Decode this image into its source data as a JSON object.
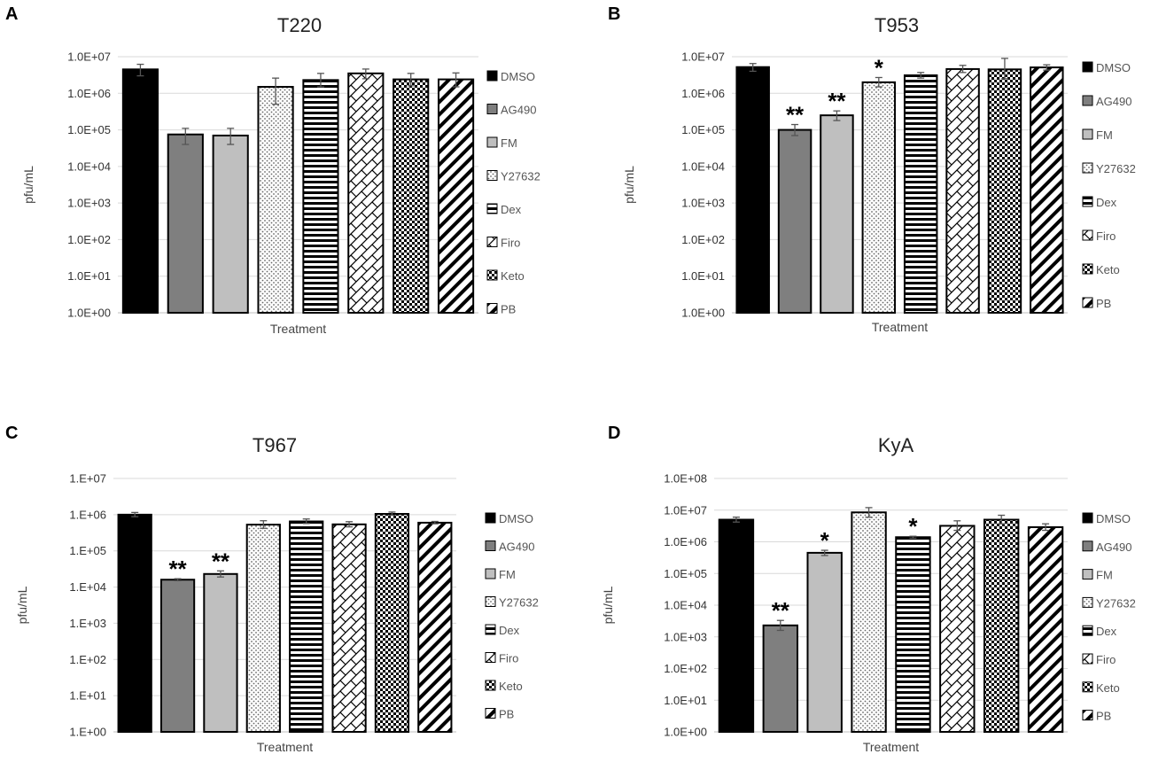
{
  "figure": {
    "colors": {
      "background": "#ffffff",
      "gridline": "#d9d9d9",
      "bar_outline": "#000000",
      "errorbar": "#555555"
    },
    "legend_items": [
      {
        "label": "DMSO",
        "fill": "solid-black"
      },
      {
        "label": "AG490",
        "fill": "solid-dark-gray"
      },
      {
        "label": "FM",
        "fill": "solid-light-gray"
      },
      {
        "label": "Y27632",
        "fill": "dots"
      },
      {
        "label": "Dex",
        "fill": "horizontal-stripes"
      },
      {
        "label": "Firo",
        "fill": "diagonal-weave"
      },
      {
        "label": "Keto",
        "fill": "checkerboard"
      },
      {
        "label": "PB",
        "fill": "wide-diagonal-stripes"
      }
    ]
  },
  "chart_data": [
    {
      "panel": "A",
      "type": "bar",
      "title": "T220",
      "scale": "log",
      "ylabel": "pfu/mL",
      "xlabel": "Treatment",
      "ylim": [
        1,
        10000000
      ],
      "ytick_labels": [
        "1.0E+00",
        "1.0E+01",
        "1.0E+02",
        "1.0E+03",
        "1.0E+04",
        "1.0E+05",
        "1.0E+06",
        "1.0E+07"
      ],
      "categories": [
        "DMSO",
        "AG490",
        "FM",
        "Y27632",
        "Dex",
        "Firo",
        "Keto",
        "PB"
      ],
      "values": [
        4500000,
        75000,
        70000,
        1500000,
        2300000,
        3500000,
        2400000,
        2400000
      ],
      "err_low": [
        3000000,
        40000,
        40000,
        500000,
        1500000,
        2500000,
        1600000,
        1500000
      ],
      "err_high": [
        6200000,
        110000,
        110000,
        2600000,
        3500000,
        4600000,
        3500000,
        3600000
      ],
      "significance": [
        "",
        "",
        "",
        "",
        "",
        "",
        "",
        ""
      ],
      "legend_position": "right"
    },
    {
      "panel": "B",
      "type": "bar",
      "title": "T953",
      "scale": "log",
      "ylabel": "pfu/mL",
      "xlabel": "Treatment",
      "ylim": [
        1,
        10000000
      ],
      "ytick_labels": [
        "1.0E+00",
        "1.0E+01",
        "1.0E+02",
        "1.0E+03",
        "1.0E+04",
        "1.0E+05",
        "1.0E+06",
        "1.0E+07"
      ],
      "categories": [
        "DMSO",
        "AG490",
        "FM",
        "Y27632",
        "Dex",
        "Firo",
        "Keto",
        "PB"
      ],
      "values": [
        5200000,
        100000,
        250000,
        2000000,
        3100000,
        4600000,
        4500000,
        5100000
      ],
      "err_low": [
        4000000,
        70000,
        180000,
        1500000,
        2600000,
        3700000,
        2500000,
        4300000
      ],
      "err_high": [
        6500000,
        140000,
        330000,
        2700000,
        3700000,
        5800000,
        9000000,
        6000000
      ],
      "significance": [
        "",
        "**",
        "**",
        "*",
        "",
        "",
        "",
        ""
      ],
      "legend_position": "right"
    },
    {
      "panel": "C",
      "type": "bar",
      "title": "T967",
      "scale": "log",
      "ylabel": "pfu/mL",
      "xlabel": "Treatment",
      "ylim": [
        1,
        10000000
      ],
      "ytick_labels": [
        "1.E+00",
        "1.E+01",
        "1.E+02",
        "1.E+03",
        "1.E+04",
        "1.E+05",
        "1.E+06",
        "1.E+07"
      ],
      "categories": [
        "DMSO",
        "AG490",
        "FM",
        "Y27632",
        "Dex",
        "Firo",
        "Keto",
        "PB"
      ],
      "values": [
        1000000,
        16000,
        23000,
        530000,
        650000,
        540000,
        1050000,
        600000
      ],
      "err_low": [
        880000,
        15000,
        19000,
        420000,
        570000,
        460000,
        960000,
        560000
      ],
      "err_high": [
        1150000,
        17000,
        28000,
        680000,
        760000,
        640000,
        1180000,
        650000
      ],
      "significance": [
        "",
        "**",
        "**",
        "",
        "",
        "",
        "",
        ""
      ],
      "legend_position": "right"
    },
    {
      "panel": "D",
      "type": "bar",
      "title": "KyA",
      "scale": "log",
      "ylabel": "pfu/mL",
      "xlabel": "Treatment",
      "ylim": [
        1,
        100000000
      ],
      "ytick_labels": [
        "1.0E+00",
        "1.0E+01",
        "1.0E+02",
        "1.0E+03",
        "1.0E+04",
        "1.0E+05",
        "1.0E+06",
        "1.0E+07",
        "1.0E+08"
      ],
      "categories": [
        "DMSO",
        "AG490",
        "FM",
        "Y27632",
        "Dex",
        "Firo",
        "Keto",
        "PB"
      ],
      "values": [
        5000000,
        2300,
        450000,
        8500000,
        1400000,
        3200000,
        5000000,
        2900000
      ],
      "err_low": [
        4200000,
        1600,
        370000,
        6000000,
        1300000,
        2300000,
        3700000,
        2300000
      ],
      "err_high": [
        6000000,
        3300,
        540000,
        12000000,
        1500000,
        4600000,
        6900000,
        3700000
      ],
      "significance": [
        "",
        "**",
        "*",
        "",
        "*",
        "",
        "",
        ""
      ],
      "legend_position": "right"
    }
  ]
}
